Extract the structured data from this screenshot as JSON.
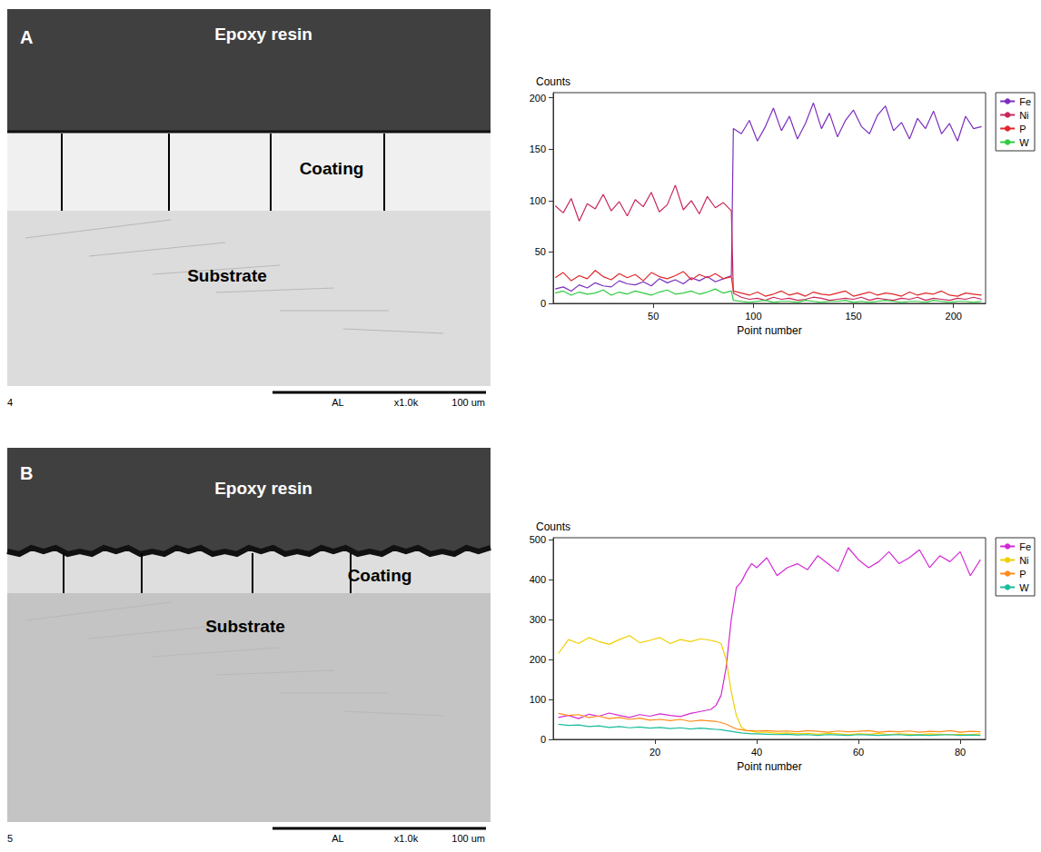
{
  "micrographs": [
    {
      "letter": "A",
      "labels": {
        "epoxy": "Epoxy resin",
        "coating": "Coating",
        "substrate": "Substrate"
      },
      "footer": {
        "number": "4",
        "code": "AL",
        "magnification": "x1.0k",
        "scale": "100 um"
      }
    },
    {
      "letter": "B",
      "labels": {
        "epoxy": "Epoxy resin",
        "coating": "Coating",
        "substrate": "Substrate"
      },
      "footer": {
        "number": "5",
        "code": "AL",
        "magnification": "x1.0k",
        "scale": "100 um"
      }
    }
  ],
  "chart_data": [
    {
      "type": "line",
      "y_label": "Counts",
      "x_label": "Point number",
      "x": [
        1,
        5,
        9,
        13,
        17,
        21,
        25,
        29,
        33,
        37,
        41,
        45,
        49,
        53,
        57,
        61,
        65,
        69,
        73,
        77,
        81,
        85,
        89,
        90,
        94,
        98,
        102,
        106,
        110,
        114,
        118,
        122,
        126,
        130,
        134,
        138,
        142,
        146,
        150,
        154,
        158,
        162,
        166,
        170,
        174,
        178,
        182,
        186,
        190,
        194,
        198,
        202,
        206,
        210,
        214
      ],
      "series": [
        {
          "name": "Fe",
          "color": "#7b2fbe",
          "values": [
            14,
            16,
            12,
            18,
            15,
            20,
            17,
            16,
            22,
            19,
            18,
            21,
            17,
            24,
            20,
            23,
            19,
            25,
            22,
            26,
            21,
            24,
            27,
            170,
            165,
            178,
            158,
            172,
            190,
            168,
            182,
            160,
            175,
            195,
            170,
            185,
            162,
            178,
            188,
            172,
            165,
            183,
            192,
            168,
            176,
            160,
            180,
            170,
            187,
            165,
            175,
            158,
            182,
            170,
            172
          ]
        },
        {
          "name": "Ni",
          "color": "#c8285a",
          "values": [
            95,
            88,
            102,
            80,
            97,
            92,
            106,
            90,
            99,
            85,
            101,
            94,
            108,
            89,
            96,
            115,
            91,
            100,
            87,
            104,
            93,
            98,
            90,
            10,
            6,
            4,
            5,
            3,
            6,
            4,
            5,
            3,
            4,
            6,
            5,
            3,
            4,
            5,
            4,
            6,
            3,
            5,
            4,
            3,
            5,
            4,
            6,
            3,
            5,
            4,
            3,
            5,
            4,
            6,
            4
          ]
        },
        {
          "name": "P",
          "color": "#e0282a",
          "values": [
            25,
            30,
            22,
            27,
            24,
            32,
            26,
            23,
            29,
            25,
            28,
            22,
            30,
            26,
            24,
            27,
            31,
            23,
            28,
            25,
            29,
            24,
            26,
            12,
            10,
            8,
            11,
            7,
            9,
            12,
            8,
            10,
            7,
            11,
            9,
            8,
            10,
            12,
            7,
            9,
            11,
            8,
            10,
            9,
            7,
            11,
            8,
            10,
            9,
            12,
            8,
            7,
            10,
            9,
            8
          ]
        },
        {
          "name": "W",
          "color": "#2ecc40",
          "values": [
            10,
            12,
            8,
            11,
            9,
            10,
            13,
            8,
            11,
            9,
            12,
            10,
            8,
            11,
            13,
            9,
            10,
            12,
            9,
            11,
            14,
            10,
            12,
            3,
            2,
            1,
            2,
            3,
            1,
            2,
            2,
            1,
            3,
            2,
            1,
            2,
            2,
            3,
            1,
            2,
            1,
            2,
            3,
            2,
            1,
            2,
            2,
            1,
            3,
            2,
            1,
            2,
            2,
            1,
            2
          ]
        }
      ],
      "xlim": [
        0,
        216
      ],
      "xticks": [
        50,
        100,
        150,
        200
      ],
      "ylim": [
        0,
        205
      ],
      "yticks": [
        0,
        50,
        100,
        150,
        200
      ],
      "grid": false,
      "legend": "right"
    },
    {
      "type": "line",
      "y_label": "Counts",
      "x_label": "Point number",
      "x": [
        1,
        3,
        5,
        7,
        9,
        11,
        13,
        15,
        17,
        19,
        21,
        23,
        25,
        27,
        29,
        31,
        32,
        33,
        34,
        35,
        36,
        37,
        38,
        39,
        40,
        42,
        44,
        46,
        48,
        50,
        52,
        54,
        56,
        58,
        60,
        62,
        64,
        66,
        68,
        70,
        72,
        74,
        76,
        78,
        80,
        82,
        84
      ],
      "series": [
        {
          "name": "Fe",
          "color": "#d42ad4",
          "values": [
            55,
            60,
            52,
            63,
            58,
            66,
            60,
            55,
            62,
            58,
            64,
            60,
            57,
            65,
            70,
            75,
            85,
            110,
            180,
            300,
            380,
            395,
            420,
            440,
            430,
            455,
            410,
            430,
            440,
            425,
            460,
            440,
            420,
            480,
            450,
            430,
            445,
            470,
            440,
            455,
            475,
            430,
            460,
            445,
            470,
            410,
            450
          ]
        },
        {
          "name": "Ni",
          "color": "#f0d000",
          "values": [
            215,
            250,
            240,
            255,
            245,
            238,
            250,
            260,
            242,
            248,
            255,
            240,
            250,
            245,
            252,
            248,
            245,
            240,
            200,
            120,
            60,
            30,
            22,
            20,
            18,
            18,
            15,
            16,
            14,
            15,
            13,
            15,
            14,
            12,
            14,
            13,
            15,
            12,
            14,
            13,
            12,
            14,
            13,
            12,
            13,
            12,
            14
          ]
        },
        {
          "name": "P",
          "color": "#ff8c1a",
          "values": [
            65,
            60,
            62,
            55,
            58,
            52,
            55,
            50,
            53,
            48,
            50,
            47,
            50,
            45,
            48,
            46,
            45,
            42,
            38,
            32,
            26,
            24,
            22,
            22,
            21,
            22,
            20,
            21,
            19,
            22,
            20,
            18,
            21,
            19,
            20,
            22,
            18,
            20,
            19,
            21,
            18,
            20,
            19,
            22,
            18,
            20,
            19
          ]
        },
        {
          "name": "W",
          "color": "#1abc9c",
          "values": [
            38,
            35,
            36,
            32,
            34,
            30,
            32,
            29,
            31,
            28,
            30,
            27,
            29,
            26,
            28,
            26,
            25,
            24,
            22,
            20,
            18,
            16,
            15,
            14,
            14,
            13,
            12,
            13,
            11,
            12,
            10,
            12,
            11,
            10,
            12,
            11,
            10,
            11,
            12,
            10,
            11,
            10,
            11,
            12,
            10,
            11,
            10
          ]
        }
      ],
      "xlim": [
        0,
        85
      ],
      "xticks": [
        20,
        40,
        60,
        80
      ],
      "ylim": [
        0,
        505
      ],
      "yticks": [
        0,
        100,
        200,
        300,
        400,
        500
      ],
      "grid": false,
      "legend": "right"
    }
  ]
}
